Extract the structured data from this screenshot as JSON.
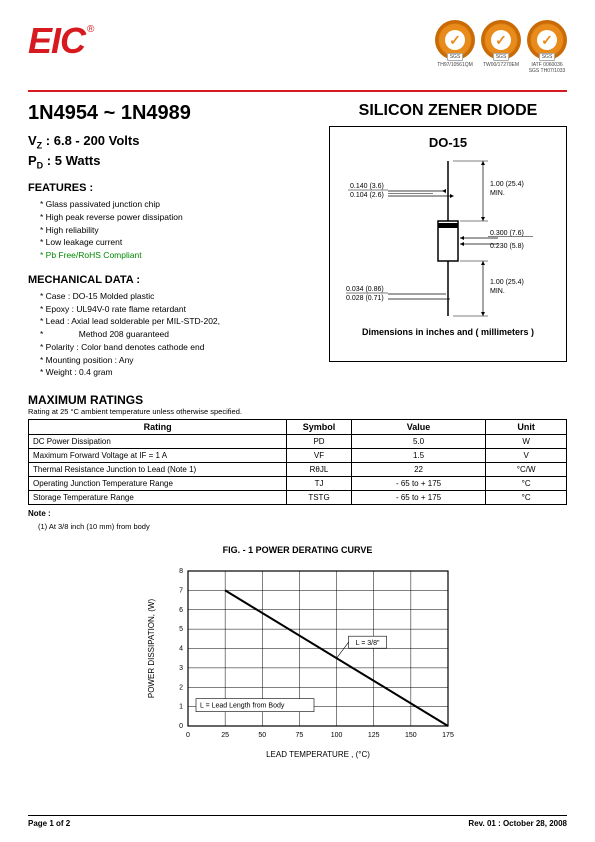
{
  "header": {
    "logo_text": "EIC",
    "certs": [
      {
        "label": "TH97/10561QM"
      },
      {
        "label": "TW00/17270EM"
      },
      {
        "label": "IATF 0060036\nSGS TH07/1033"
      }
    ]
  },
  "main": {
    "part_range": "1N4954 ~ 1N4989",
    "vz_line": "Vz : 6.8 - 200 Volts",
    "pd_line": "PD : 5 Watts",
    "title_right": "SILICON ZENER DIODE",
    "package_title": "DO-15",
    "dims_caption": "Dimensions in inches and ( millimeters )",
    "package_dims": {
      "lead_dia_top": "0.140 (3.6)",
      "lead_dia_bot": "0.104 (2.6)",
      "lead_len_top": "1.00 (25.4)",
      "lead_len_min": "MIN.",
      "body_dia_top": "0.300 (7.6)",
      "body_dia_bot": "0.230 (5.8)",
      "lead_len2_top": "1.00 (25.4)",
      "lead_len2_min": "MIN.",
      "body_len_top": "0.034 (0.86)",
      "body_len_bot": "0.028 (0.71)"
    }
  },
  "features": {
    "heading": "FEATURES :",
    "items": [
      "Glass passivated junction chip",
      "High peak reverse power dissipation",
      "High reliability",
      "Low leakage current",
      "Pb Free/RoHS Compliant"
    ]
  },
  "mechanical": {
    "heading": "MECHANICAL  DATA :",
    "items": [
      "Case :   DO-15  Molded plastic",
      "Epoxy : UL94V-0 rate flame retardant",
      "Lead :   Axial lead solderable per MIL-STD-202,",
      "              Method 208 guaranteed",
      "Polarity :   Color band denotes cathode end",
      "Mounting   position : Any",
      "Weight :   0.4  gram"
    ]
  },
  "ratings": {
    "heading": "MAXIMUM RATINGS",
    "subheading": "Rating at 25 °C ambient temperature unless otherwise specified.",
    "columns": [
      "Rating",
      "Symbol",
      "Value",
      "Unit"
    ],
    "rows": [
      [
        "DC Power Dissipation",
        "PD",
        "5.0",
        "W"
      ],
      [
        "Maximum Forward Voltage at IF = 1 A",
        "VF",
        "1.5",
        "V"
      ],
      [
        "Thermal Resistance Junction to Lead (Note 1)",
        "RθJL",
        "22",
        "°C/W"
      ],
      [
        "Operating Junction Temperature Range",
        "TJ",
        "- 65 to + 175",
        "°C"
      ],
      [
        "Storage Temperature Range",
        "TSTG",
        "- 65 to + 175",
        "°C"
      ]
    ],
    "note_head": "Note :",
    "note": "(1)  At 3/8 inch (10 mm) from body"
  },
  "chart": {
    "title": "FIG. - 1  POWER DERATING CURVE",
    "type": "line",
    "xlabel": "LEAD TEMPERATURE , (°C)",
    "ylabel": "POWER DISSIPATION, (W)",
    "xlim": [
      0,
      175
    ],
    "ylim": [
      0,
      8
    ],
    "xtick_step": 25,
    "ytick_step": 1,
    "xticks": [
      0,
      25,
      50,
      75,
      100,
      125,
      150,
      175
    ],
    "yticks": [
      0,
      1,
      2,
      3,
      4,
      5,
      6,
      7,
      8
    ],
    "line_color": "#000000",
    "line_width": 2,
    "grid_color": "#000000",
    "background_color": "#ffffff",
    "series": {
      "x": [
        25,
        175
      ],
      "y": [
        7,
        0
      ]
    },
    "annotation1": "L = 3/8\"",
    "annotation2": "L = Lead Length from Body",
    "axis_fontsize": 7,
    "label_fontsize": 8
  },
  "footer": {
    "left": "Page 1 of 2",
    "right": "Rev. 01 : October 28, 2008"
  }
}
